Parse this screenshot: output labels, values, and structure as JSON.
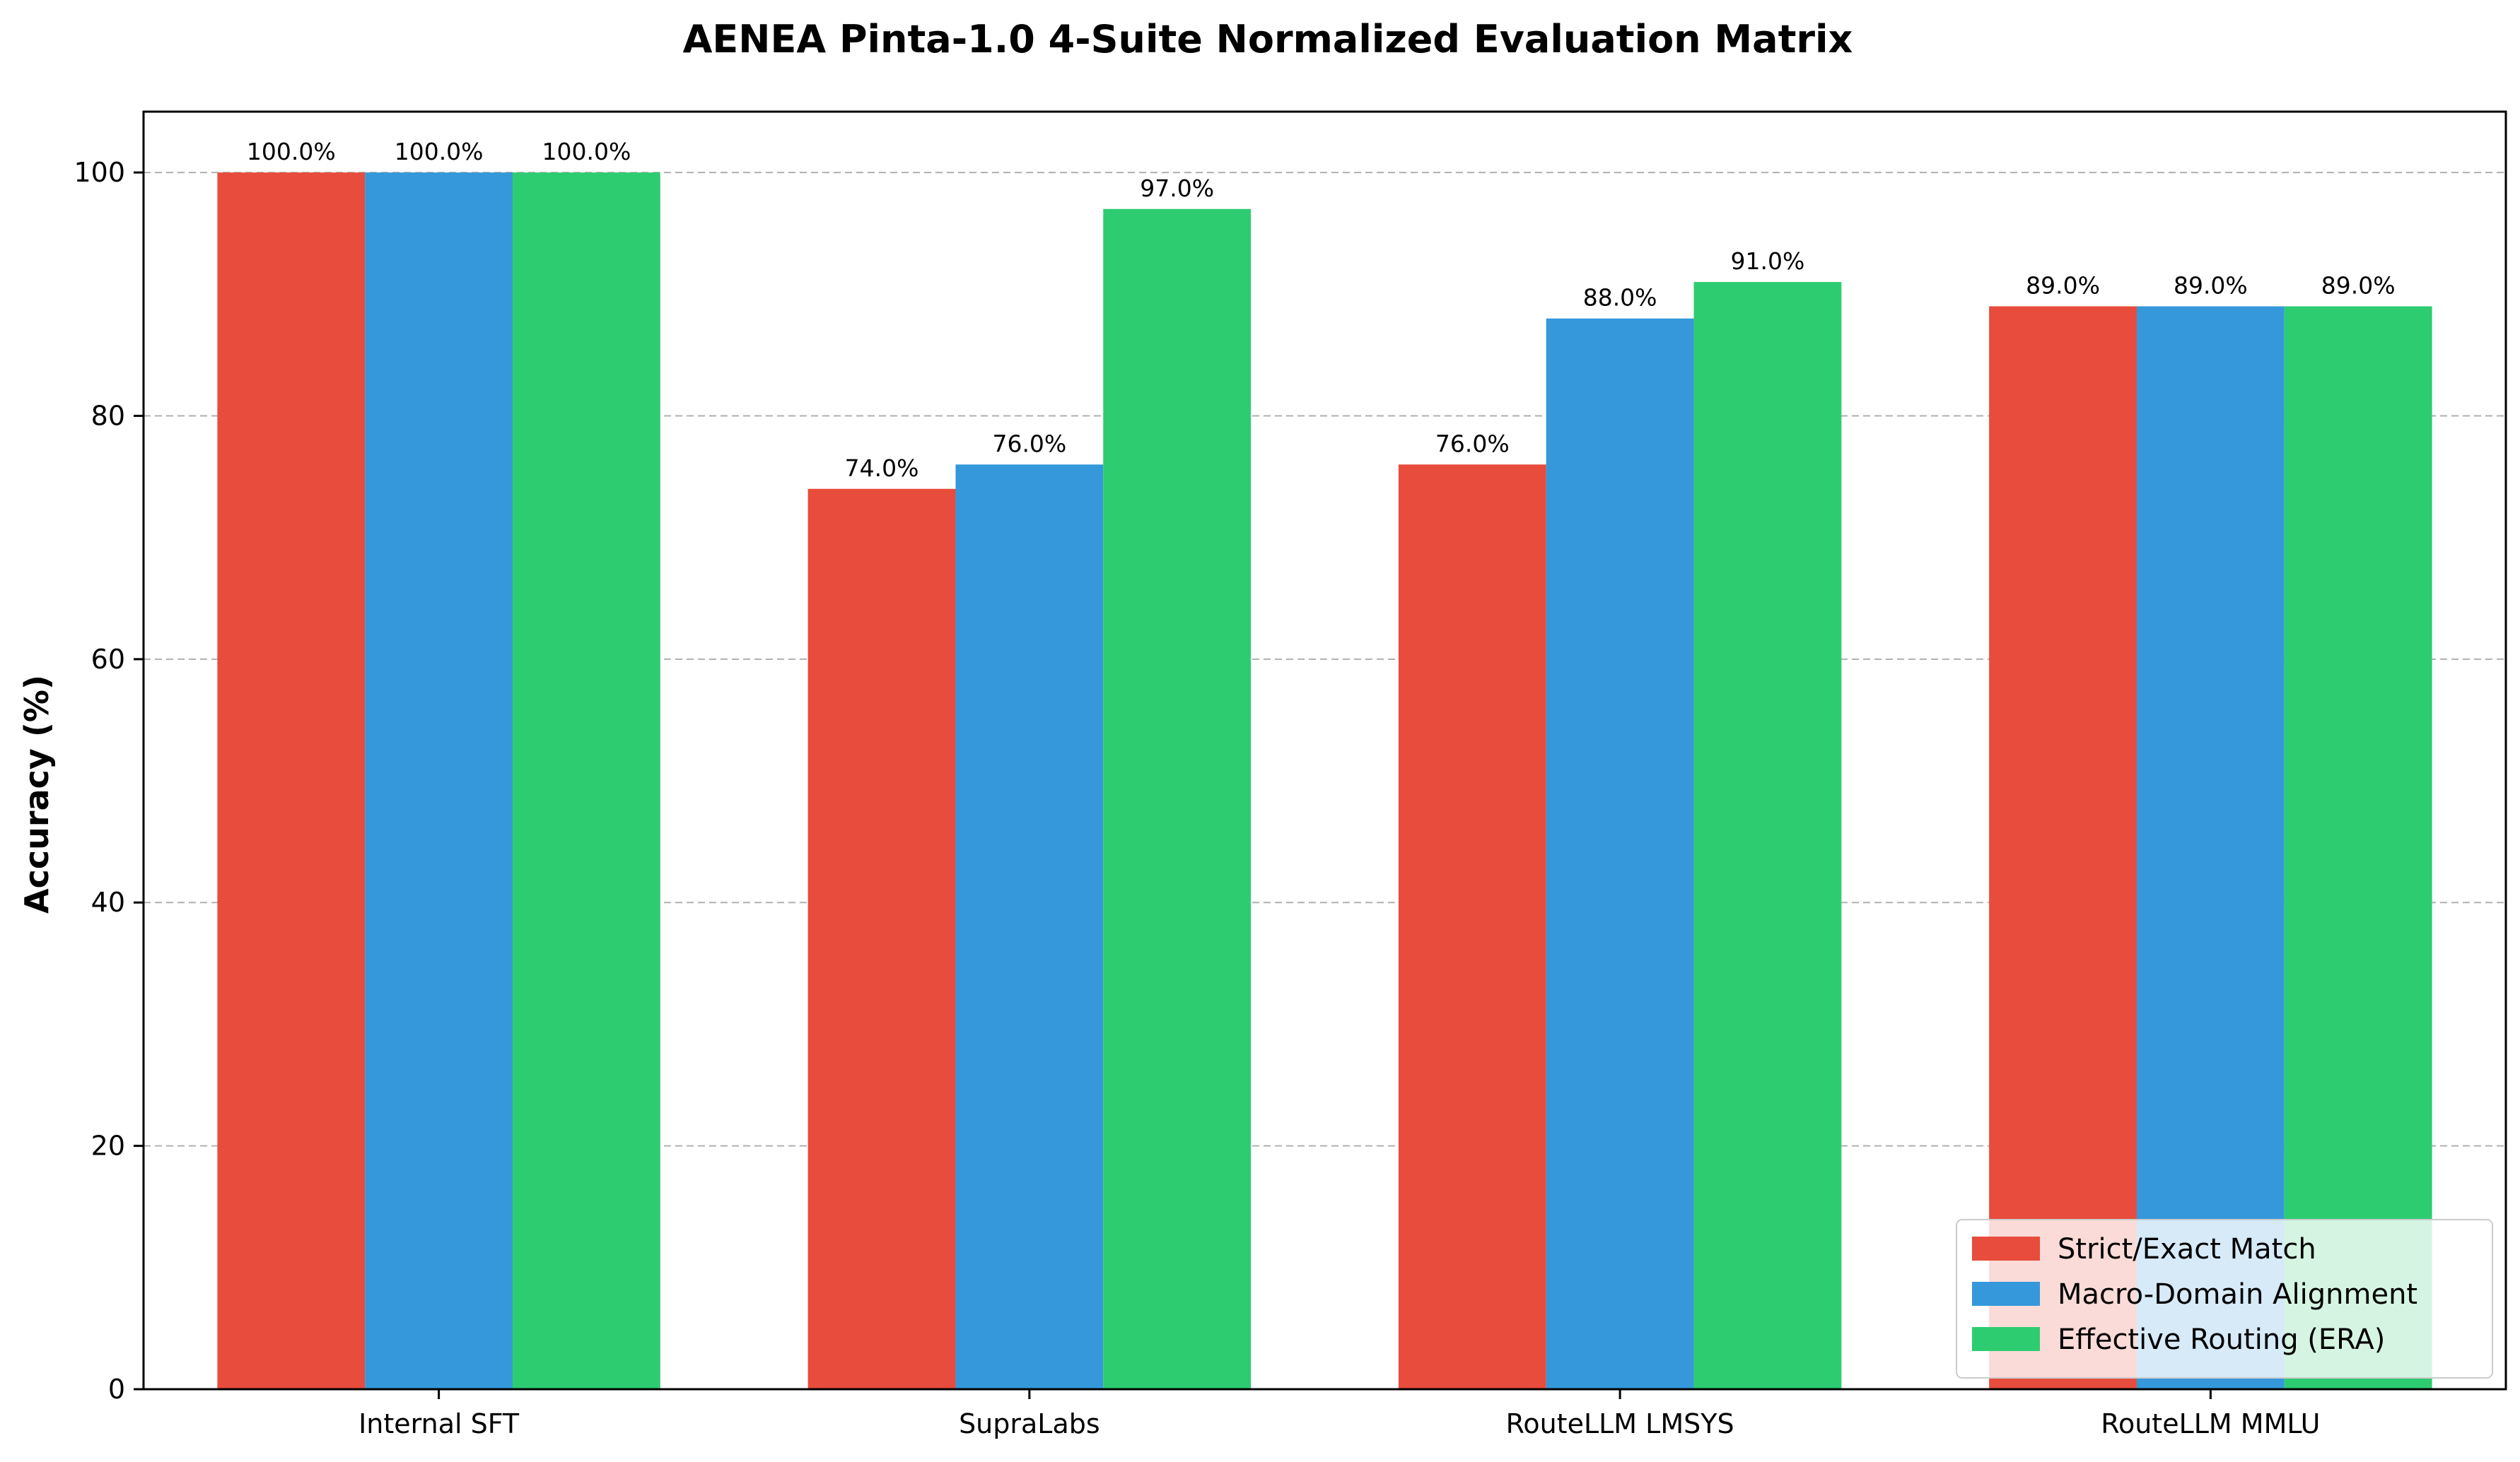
{
  "chart_data": {
    "type": "bar",
    "title": "AENEA Pinta-1.0 4-Suite Normalized Evaluation Matrix",
    "xlabel": "",
    "ylabel": "Accuracy (%)",
    "ylim": [
      0,
      105
    ],
    "yticks": [
      0,
      20,
      40,
      60,
      80,
      100
    ],
    "grid": "y dashed",
    "legend_position": "bottom-right",
    "categories": [
      "Internal SFT",
      "SupraLabs",
      "RouteLLM LMSYS",
      "RouteLLM MMLU"
    ],
    "series": [
      {
        "name": "Strict/Exact Match",
        "color": "#e74c3c",
        "values": [
          100.0,
          74.0,
          76.0,
          89.0
        ],
        "labels": [
          "100.0%",
          "74.0%",
          "76.0%",
          "89.0%"
        ]
      },
      {
        "name": "Macro-Domain Alignment",
        "color": "#3498db",
        "values": [
          100.0,
          76.0,
          88.0,
          89.0
        ],
        "labels": [
          "100.0%",
          "76.0%",
          "88.0%",
          "89.0%"
        ]
      },
      {
        "name": "Effective Routing (ERA)",
        "color": "#2ecc71",
        "values": [
          100.0,
          97.0,
          91.0,
          89.0
        ],
        "labels": [
          "100.0%",
          "97.0%",
          "91.0%",
          "89.0%"
        ]
      }
    ]
  }
}
